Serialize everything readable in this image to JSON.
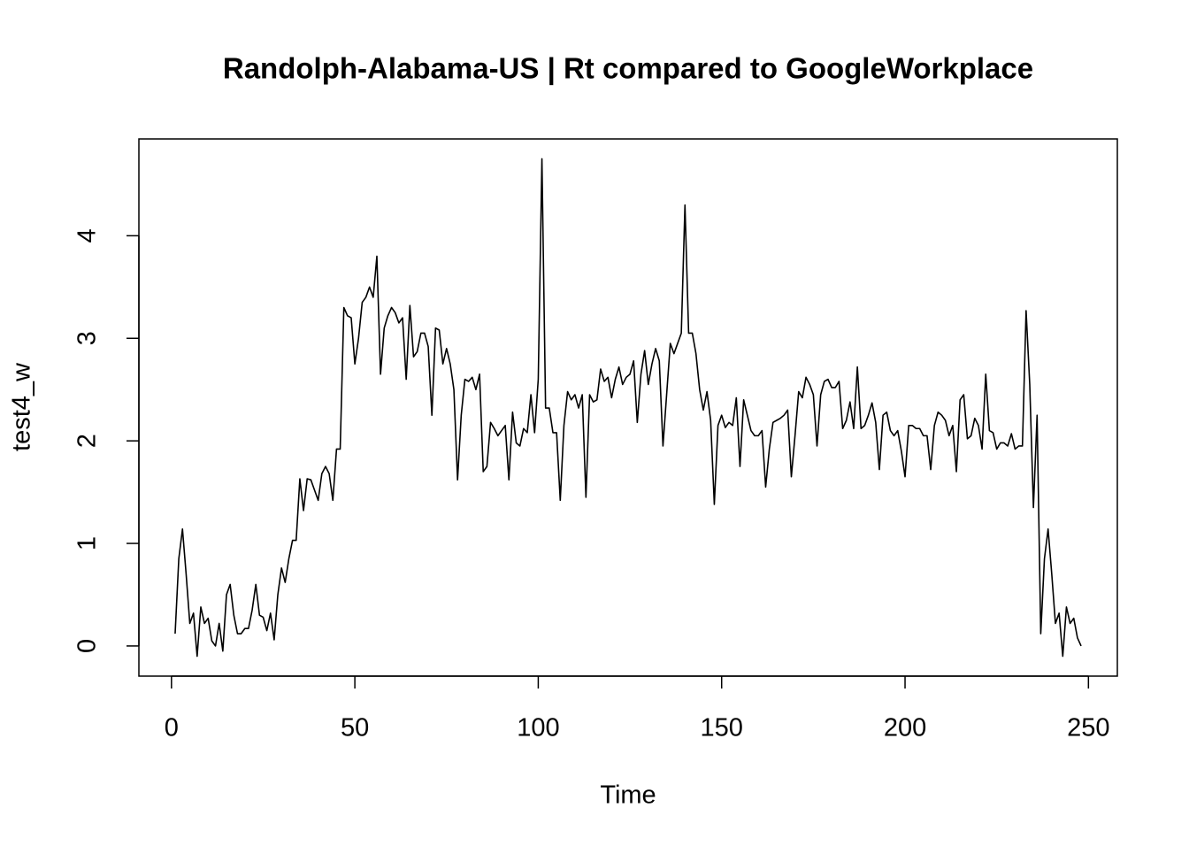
{
  "chart_data": {
    "type": "line",
    "title": "Randolph-Alabama-US | Rt compared to GoogleWorkplace",
    "xlabel": "Time",
    "ylabel": "test4_w",
    "color": "#000000",
    "xlim": [
      -8.88,
      257.88
    ],
    "ylim": [
      -0.294,
      4.944
    ],
    "xticks": [
      0,
      50,
      100,
      150,
      200,
      250
    ],
    "yticks": [
      0,
      1,
      2,
      3,
      4
    ],
    "x": [
      1,
      2,
      3,
      4,
      5,
      6,
      7,
      8,
      9,
      10,
      11,
      12,
      13,
      14,
      15,
      16,
      17,
      18,
      19,
      20,
      21,
      22,
      23,
      24,
      25,
      26,
      27,
      28,
      29,
      30,
      31,
      32,
      33,
      34,
      35,
      36,
      37,
      38,
      39,
      40,
      41,
      42,
      43,
      44,
      45,
      46,
      47,
      48,
      49,
      50,
      51,
      52,
      53,
      54,
      55,
      56,
      57,
      58,
      59,
      60,
      61,
      62,
      63,
      64,
      65,
      66,
      67,
      68,
      69,
      70,
      71,
      72,
      73,
      74,
      75,
      76,
      77,
      78,
      79,
      80,
      81,
      82,
      83,
      84,
      85,
      86,
      87,
      88,
      89,
      90,
      91,
      92,
      93,
      94,
      95,
      96,
      97,
      98,
      99,
      100,
      101,
      102,
      103,
      104,
      105,
      106,
      107,
      108,
      109,
      110,
      111,
      112,
      113,
      114,
      115,
      116,
      117,
      118,
      119,
      120,
      121,
      122,
      123,
      124,
      125,
      126,
      127,
      128,
      129,
      130,
      131,
      132,
      133,
      134,
      135,
      136,
      137,
      138,
      139,
      140,
      141,
      142,
      143,
      144,
      145,
      146,
      147,
      148,
      149,
      150,
      151,
      152,
      153,
      154,
      155,
      156,
      157,
      158,
      159,
      160,
      161,
      162,
      163,
      164,
      165,
      166,
      167,
      168,
      169,
      170,
      171,
      172,
      173,
      174,
      175,
      176,
      177,
      178,
      179,
      180,
      181,
      182,
      183,
      184,
      185,
      186,
      187,
      188,
      189,
      190,
      191,
      192,
      193,
      194,
      195,
      196,
      197,
      198,
      199,
      200,
      201,
      202,
      203,
      204,
      205,
      206,
      207,
      208,
      209,
      210,
      211,
      212,
      213,
      214,
      215,
      216,
      217,
      218,
      219,
      220,
      221,
      222,
      223,
      224,
      225,
      226,
      227,
      228,
      229,
      230,
      231,
      232,
      233,
      234,
      235,
      236,
      237,
      238,
      239,
      240,
      241,
      242,
      243,
      244,
      245,
      246,
      247,
      248
    ],
    "values": [
      0.12,
      0.85,
      1.14,
      0.7,
      0.22,
      0.32,
      -0.1,
      0.38,
      0.22,
      0.27,
      0.05,
      0.0,
      0.22,
      -0.05,
      0.5,
      0.6,
      0.3,
      0.12,
      0.12,
      0.17,
      0.17,
      0.35,
      0.6,
      0.3,
      0.28,
      0.15,
      0.32,
      0.06,
      0.5,
      0.76,
      0.62,
      0.85,
      1.03,
      1.03,
      1.63,
      1.32,
      1.63,
      1.62,
      1.52,
      1.42,
      1.68,
      1.75,
      1.68,
      1.42,
      1.92,
      1.92,
      3.3,
      3.22,
      3.2,
      2.75,
      3.0,
      3.35,
      3.4,
      3.5,
      3.4,
      3.8,
      2.65,
      3.1,
      3.22,
      3.3,
      3.25,
      3.15,
      3.2,
      2.6,
      3.32,
      2.82,
      2.87,
      3.05,
      3.05,
      2.92,
      2.25,
      3.1,
      3.08,
      2.75,
      2.9,
      2.75,
      2.5,
      1.62,
      2.25,
      2.6,
      2.58,
      2.62,
      2.5,
      2.65,
      1.7,
      1.75,
      2.18,
      2.12,
      2.05,
      2.1,
      2.15,
      1.62,
      2.28,
      1.98,
      1.95,
      2.12,
      2.08,
      2.45,
      2.08,
      2.6,
      4.75,
      2.32,
      2.32,
      2.08,
      2.08,
      1.42,
      2.15,
      2.48,
      2.4,
      2.45,
      2.32,
      2.45,
      1.45,
      2.45,
      2.38,
      2.4,
      2.7,
      2.58,
      2.62,
      2.42,
      2.6,
      2.72,
      2.55,
      2.62,
      2.65,
      2.78,
      2.18,
      2.65,
      2.88,
      2.55,
      2.75,
      2.9,
      2.78,
      1.95,
      2.45,
      2.95,
      2.85,
      2.95,
      3.05,
      4.3,
      3.05,
      3.05,
      2.85,
      2.5,
      2.3,
      2.48,
      2.2,
      1.38,
      2.15,
      2.25,
      2.13,
      2.18,
      2.15,
      2.42,
      1.75,
      2.4,
      2.25,
      2.1,
      2.05,
      2.05,
      2.1,
      1.55,
      1.92,
      2.18,
      2.2,
      2.22,
      2.25,
      2.3,
      1.65,
      2.05,
      2.48,
      2.42,
      2.62,
      2.55,
      2.45,
      1.95,
      2.45,
      2.58,
      2.6,
      2.52,
      2.52,
      2.58,
      2.12,
      2.2,
      2.38,
      2.12,
      2.72,
      2.12,
      2.15,
      2.25,
      2.37,
      2.18,
      1.72,
      2.25,
      2.28,
      2.1,
      2.05,
      2.1,
      1.9,
      1.65,
      2.15,
      2.15,
      2.12,
      2.12,
      2.05,
      2.05,
      1.72,
      2.15,
      2.28,
      2.25,
      2.2,
      2.05,
      2.15,
      1.7,
      2.4,
      2.45,
      2.02,
      2.05,
      2.22,
      2.15,
      1.92,
      2.65,
      2.1,
      2.08,
      1.92,
      1.98,
      1.98,
      1.95,
      2.07,
      1.92,
      1.95,
      1.95,
      3.27,
      2.55,
      1.35,
      2.25,
      0.12,
      0.85,
      1.14,
      0.7,
      0.22,
      0.32,
      -0.1,
      0.38,
      0.22,
      0.27,
      0.08,
      0.0
    ]
  }
}
